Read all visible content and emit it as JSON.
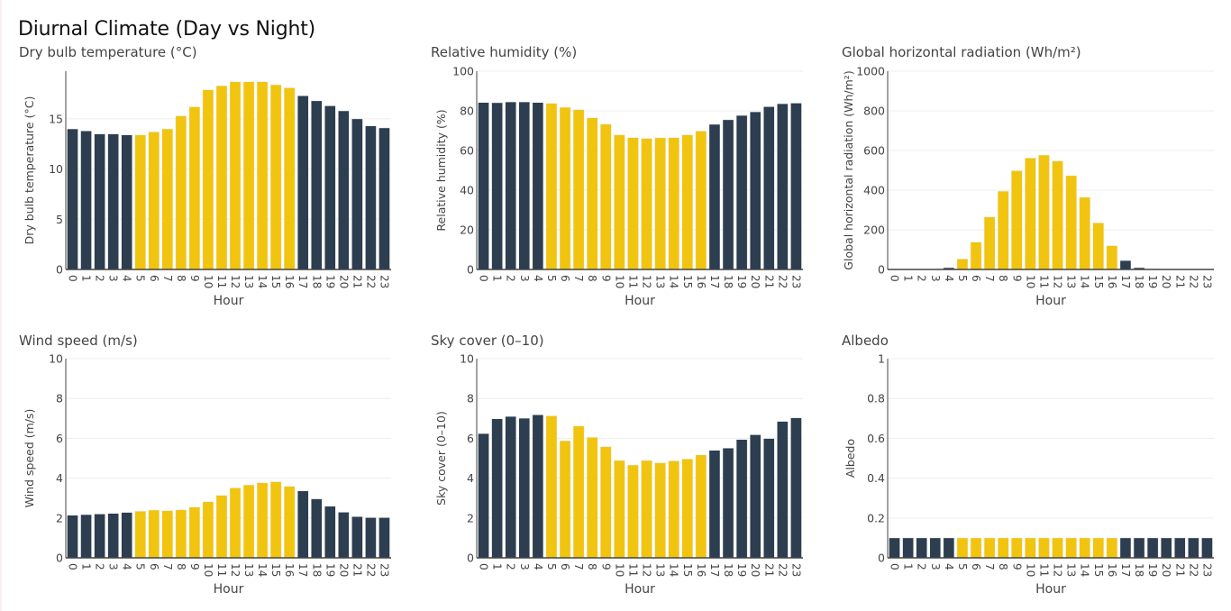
{
  "page": {
    "title": "Diurnal Climate (Day vs Night)"
  },
  "colors": {
    "day": "#f1c40f",
    "night": "#2c3e50",
    "grid": "#eeeeee",
    "axis": "#444444",
    "text": "#444444"
  },
  "chart_data": [
    {
      "type": "bar",
      "title": "Dry bulb temperature (°C)",
      "xlabel": "Hour",
      "ylabel": "Dry bulb temperature (°C)",
      "ylim": [
        0,
        19.75
      ],
      "yticks": [
        0,
        5,
        10,
        15
      ],
      "ytick_labels": [
        "0",
        "5",
        "10",
        "15"
      ],
      "categories": [
        "0",
        "1",
        "2",
        "3",
        "4",
        "5",
        "6",
        "7",
        "8",
        "9",
        "10",
        "11",
        "12",
        "13",
        "14",
        "15",
        "16",
        "17",
        "18",
        "19",
        "20",
        "21",
        "22",
        "23"
      ],
      "values": [
        14.0,
        13.8,
        13.5,
        13.5,
        13.4,
        13.4,
        13.7,
        14.0,
        15.3,
        16.2,
        17.9,
        18.3,
        18.7,
        18.7,
        18.7,
        18.4,
        18.1,
        17.3,
        16.8,
        16.3,
        15.8,
        15.0,
        14.3,
        14.1
      ],
      "period": [
        "night",
        "night",
        "night",
        "night",
        "night",
        "day",
        "day",
        "day",
        "day",
        "day",
        "day",
        "day",
        "day",
        "day",
        "day",
        "day",
        "day",
        "night",
        "night",
        "night",
        "night",
        "night",
        "night",
        "night"
      ],
      "grid": true
    },
    {
      "type": "bar",
      "title": "Relative humidity (%)",
      "xlabel": "Hour",
      "ylabel": "Relative humidity (%)",
      "ylim": [
        0,
        100
      ],
      "yticks": [
        0,
        20,
        40,
        60,
        80,
        100
      ],
      "ytick_labels": [
        "0",
        "20",
        "40",
        "60",
        "80",
        "100"
      ],
      "categories": [
        "0",
        "1",
        "2",
        "3",
        "4",
        "5",
        "6",
        "7",
        "8",
        "9",
        "10",
        "11",
        "12",
        "13",
        "14",
        "15",
        "16",
        "17",
        "18",
        "19",
        "20",
        "21",
        "22",
        "23"
      ],
      "values": [
        84.2,
        84.1,
        84.5,
        84.5,
        84.2,
        83.8,
        81.8,
        80.6,
        76.5,
        73.3,
        67.9,
        66.5,
        66.1,
        66.4,
        66.5,
        67.9,
        69.8,
        73.2,
        75.5,
        77.7,
        79.5,
        82.1,
        83.6,
        83.9
      ],
      "period": [
        "night",
        "night",
        "night",
        "night",
        "night",
        "day",
        "day",
        "day",
        "day",
        "day",
        "day",
        "day",
        "day",
        "day",
        "day",
        "day",
        "day",
        "night",
        "night",
        "night",
        "night",
        "night",
        "night",
        "night"
      ],
      "grid": true
    },
    {
      "type": "bar",
      "title": "Global horizontal radiation (Wh/m²)",
      "xlabel": "Hour",
      "ylabel": "Global horizontal radiation (Wh/m²)",
      "ylim": [
        0,
        1000
      ],
      "yticks": [
        0,
        200,
        400,
        600,
        800,
        1000
      ],
      "ytick_labels": [
        "0",
        "200",
        "400",
        "600",
        "800",
        "1000"
      ],
      "categories": [
        "0",
        "1",
        "2",
        "3",
        "4",
        "5",
        "6",
        "7",
        "8",
        "9",
        "10",
        "11",
        "12",
        "13",
        "14",
        "15",
        "16",
        "17",
        "18",
        "19",
        "20",
        "21",
        "22",
        "23"
      ],
      "values": [
        0,
        0,
        0,
        0,
        9,
        53,
        138,
        265,
        395,
        498,
        562,
        577,
        547,
        473,
        364,
        235,
        120,
        45,
        9,
        3,
        0,
        0,
        0,
        0
      ],
      "period": [
        "night",
        "night",
        "night",
        "night",
        "night",
        "day",
        "day",
        "day",
        "day",
        "day",
        "day",
        "day",
        "day",
        "day",
        "day",
        "day",
        "day",
        "night",
        "night",
        "night",
        "night",
        "night",
        "night",
        "night"
      ],
      "grid": true
    },
    {
      "type": "bar",
      "title": "Wind speed (m/s)",
      "xlabel": "Hour",
      "ylabel": "Wind speed (m/s)",
      "ylim": [
        0,
        10
      ],
      "yticks": [
        0,
        2,
        4,
        6,
        8,
        10
      ],
      "ytick_labels": [
        "0",
        "2",
        "4",
        "6",
        "8",
        "10"
      ],
      "categories": [
        "0",
        "1",
        "2",
        "3",
        "4",
        "5",
        "6",
        "7",
        "8",
        "9",
        "10",
        "11",
        "12",
        "13",
        "14",
        "15",
        "16",
        "17",
        "18",
        "19",
        "20",
        "21",
        "22",
        "23"
      ],
      "values": [
        2.14,
        2.17,
        2.2,
        2.23,
        2.28,
        2.34,
        2.4,
        2.37,
        2.41,
        2.55,
        2.82,
        3.14,
        3.51,
        3.66,
        3.77,
        3.82,
        3.59,
        3.36,
        2.96,
        2.59,
        2.29,
        2.07,
        2.02,
        2.02
      ],
      "period": [
        "night",
        "night",
        "night",
        "night",
        "night",
        "day",
        "day",
        "day",
        "day",
        "day",
        "day",
        "day",
        "day",
        "day",
        "day",
        "day",
        "day",
        "night",
        "night",
        "night",
        "night",
        "night",
        "night",
        "night"
      ],
      "grid": true
    },
    {
      "type": "bar",
      "title": "Sky cover (0–10)",
      "xlabel": "Hour",
      "ylabel": "Sky cover (0–10)",
      "ylim": [
        0,
        10
      ],
      "yticks": [
        0,
        2,
        4,
        6,
        8,
        10
      ],
      "ytick_labels": [
        "0",
        "2",
        "4",
        "6",
        "8",
        "10"
      ],
      "categories": [
        "0",
        "1",
        "2",
        "3",
        "4",
        "5",
        "6",
        "7",
        "8",
        "9",
        "10",
        "11",
        "12",
        "13",
        "14",
        "15",
        "16",
        "17",
        "18",
        "19",
        "20",
        "21",
        "22",
        "23"
      ],
      "values": [
        6.24,
        6.98,
        7.1,
        7.01,
        7.18,
        7.13,
        5.88,
        6.62,
        6.05,
        5.58,
        4.89,
        4.66,
        4.89,
        4.77,
        4.87,
        4.96,
        5.17,
        5.4,
        5.51,
        5.94,
        6.18,
        5.99,
        6.85,
        7.03
      ],
      "period": [
        "night",
        "night",
        "night",
        "night",
        "night",
        "day",
        "day",
        "day",
        "day",
        "day",
        "day",
        "day",
        "day",
        "day",
        "day",
        "day",
        "day",
        "night",
        "night",
        "night",
        "night",
        "night",
        "night",
        "night"
      ],
      "grid": true
    },
    {
      "type": "bar",
      "title": "Albedo",
      "xlabel": "Hour",
      "ylabel": "Albedo",
      "ylim": [
        0,
        1
      ],
      "yticks": [
        0,
        0.2,
        0.4,
        0.6,
        0.8,
        1
      ],
      "ytick_labels": [
        "0",
        "0.2",
        "0.4",
        "0.6",
        "0.8",
        "1"
      ],
      "categories": [
        "0",
        "1",
        "2",
        "3",
        "4",
        "5",
        "6",
        "7",
        "8",
        "9",
        "10",
        "11",
        "12",
        "13",
        "14",
        "15",
        "16",
        "17",
        "18",
        "19",
        "20",
        "21",
        "22",
        "23"
      ],
      "values": [
        0.1,
        0.1,
        0.1,
        0.1,
        0.1,
        0.1,
        0.1,
        0.1,
        0.1,
        0.1,
        0.1,
        0.1,
        0.1,
        0.1,
        0.1,
        0.1,
        0.1,
        0.1,
        0.1,
        0.1,
        0.1,
        0.1,
        0.1,
        0.1
      ],
      "period": [
        "night",
        "night",
        "night",
        "night",
        "night",
        "day",
        "day",
        "day",
        "day",
        "day",
        "day",
        "day",
        "day",
        "day",
        "day",
        "day",
        "day",
        "night",
        "night",
        "night",
        "night",
        "night",
        "night",
        "night"
      ],
      "grid": true
    }
  ]
}
